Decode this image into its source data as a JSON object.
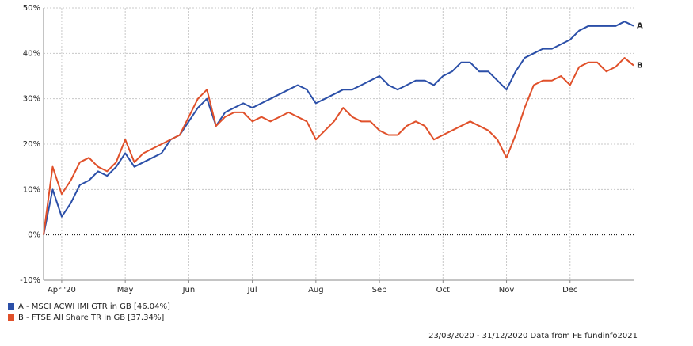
{
  "chart_data": {
    "type": "line",
    "categories": [
      null,
      null,
      "Apr '20",
      null,
      null,
      null,
      null,
      null,
      null,
      "May",
      null,
      null,
      null,
      null,
      null,
      null,
      "Jun",
      null,
      null,
      null,
      null,
      null,
      null,
      "Jul",
      null,
      null,
      null,
      null,
      null,
      null,
      "Aug",
      null,
      null,
      null,
      null,
      null,
      null,
      "Sep",
      null,
      null,
      null,
      null,
      null,
      null,
      "Oct",
      null,
      null,
      null,
      null,
      null,
      null,
      "Nov",
      null,
      null,
      null,
      null,
      null,
      null,
      "Dec",
      null,
      null,
      null,
      null,
      null,
      null,
      null
    ],
    "series": [
      {
        "name": "A - MSCI ACWI IMI GTR in GB [46.04%]",
        "label": "A",
        "color": "#2b4fa8",
        "values": [
          0,
          10,
          4,
          7,
          11,
          12,
          14,
          13,
          15,
          18,
          15,
          16,
          17,
          18,
          21,
          22,
          25,
          28,
          30,
          24,
          27,
          28,
          29,
          28,
          29,
          30,
          31,
          32,
          33,
          32,
          29,
          30,
          31,
          32,
          32,
          33,
          34,
          35,
          33,
          32,
          33,
          34,
          34,
          33,
          35,
          36,
          38,
          38,
          36,
          36,
          34,
          32,
          36,
          39,
          40,
          41,
          41,
          42,
          43,
          45,
          46,
          46,
          46,
          46,
          47,
          46.04
        ]
      },
      {
        "name": "B - FTSE All Share TR in GB [37.34%]",
        "label": "B",
        "color": "#e0502a",
        "values": [
          0,
          15,
          9,
          12,
          16,
          17,
          15,
          14,
          16,
          21,
          16,
          18,
          19,
          20,
          21,
          22,
          26,
          30,
          32,
          24,
          26,
          27,
          27,
          25,
          26,
          25,
          26,
          27,
          26,
          25,
          21,
          23,
          25,
          28,
          26,
          25,
          25,
          23,
          22,
          22,
          24,
          25,
          24,
          21,
          22,
          23,
          24,
          25,
          24,
          23,
          21,
          17,
          22,
          28,
          33,
          34,
          34,
          35,
          33,
          37,
          38,
          38,
          36,
          37,
          39,
          37.34
        ]
      }
    ],
    "ylim": [
      -10,
      50
    ],
    "yticks": [
      {
        "value": -10,
        "label": "-10%"
      },
      {
        "value": 0,
        "label": "0%"
      },
      {
        "value": 10,
        "label": "10%"
      },
      {
        "value": 20,
        "label": "20%"
      },
      {
        "value": 30,
        "label": "30%"
      },
      {
        "value": 40,
        "label": "40%"
      },
      {
        "value": 50,
        "label": "50%"
      }
    ],
    "grid": true,
    "legend": "bottom-left",
    "footer": "23/03/2020 - 31/12/2020 Data from FE fundinfo2021"
  }
}
